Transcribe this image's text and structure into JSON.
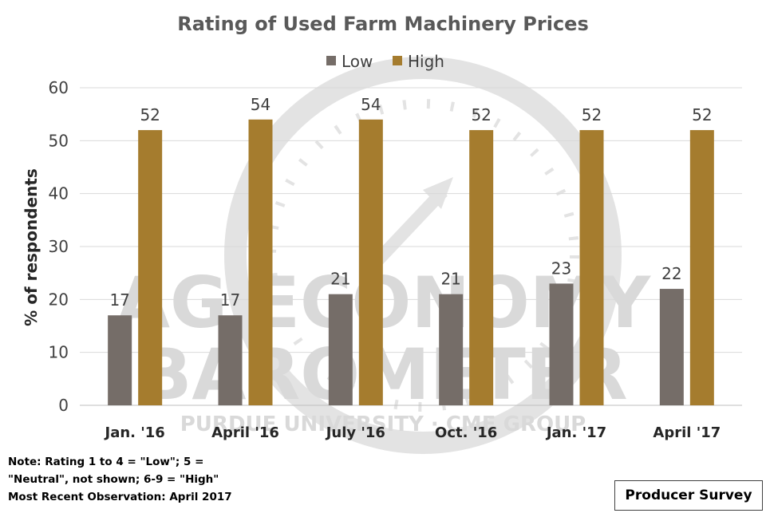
{
  "chart_data": {
    "type": "bar",
    "title": "Rating of Used Farm Machinery Prices",
    "ylabel": "% of respondents",
    "xlabel": "",
    "categories": [
      "Jan. '16",
      "April '16",
      "July '16",
      "Oct. '16",
      "Jan. '17",
      "April '17"
    ],
    "series": [
      {
        "name": "Low",
        "values": [
          17,
          17,
          21,
          21,
          23,
          22
        ],
        "color": "#756d68"
      },
      {
        "name": "High",
        "values": [
          52,
          54,
          54,
          52,
          52,
          52
        ],
        "color": "#a57c2e"
      }
    ],
    "ylim": [
      0,
      60
    ],
    "yticks": [
      0,
      10,
      20,
      30,
      40,
      50,
      60
    ],
    "grid": "horizontal",
    "legend_position": "top"
  },
  "watermark": {
    "line1": "AG ECONOMY",
    "line2": "BAROMETER",
    "line3": "PURDUE UNIVERSITY · CME GROUP"
  },
  "notes": [
    "Note: Rating 1 to 4 = \"Low\"; 5 =",
    "\"Neutral\", not shown; 6-9 = \"High\"",
    "Most Recent Observation: April 2017"
  ],
  "source_label": "Producer Survey"
}
